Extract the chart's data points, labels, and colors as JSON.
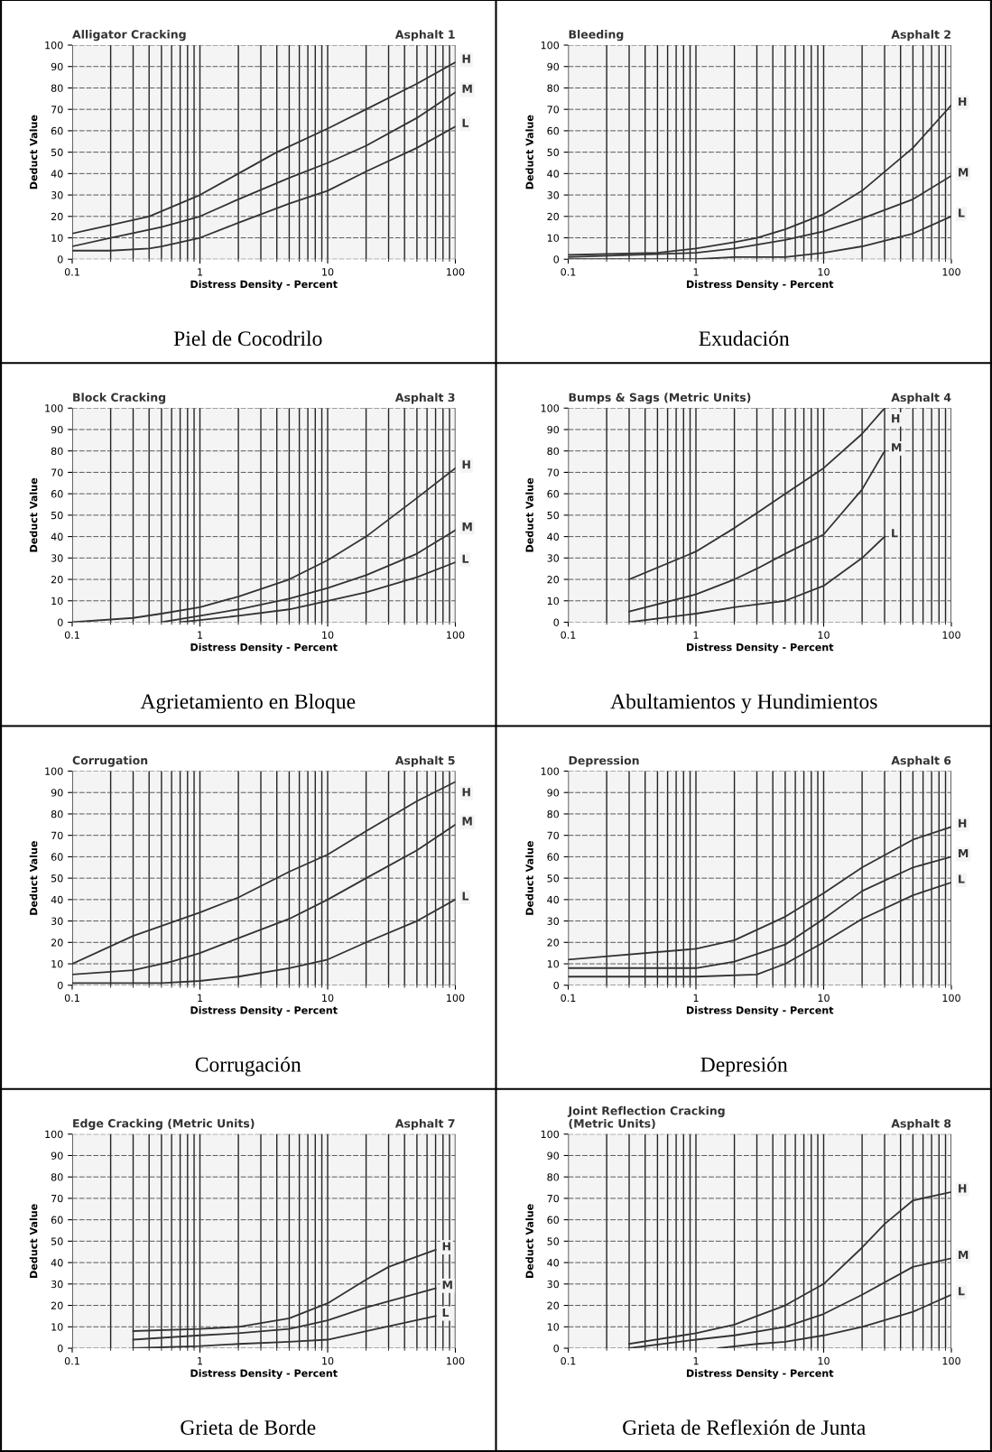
{
  "chart_data": [
    {
      "type": "line",
      "title": "Alligator Cracking",
      "xlabel": "Distress Density - Percent",
      "ylabel": "Deduct Value",
      "annotations": [
        "Asphalt 1",
        "Piel de Cocodrilo"
      ],
      "log": "x",
      "xlim": [
        0.1,
        100
      ],
      "xticks": [
        0.1,
        1,
        10,
        100
      ],
      "ylim": [
        0,
        100
      ],
      "yticks": [
        0,
        10,
        20,
        30,
        40,
        50,
        60,
        70,
        80,
        90,
        100
      ],
      "grid": true,
      "series": [
        {
          "name": "H",
          "color": "#333333",
          "x": [
            0.1,
            0.2,
            0.4,
            1,
            2,
            4,
            10,
            20,
            50,
            100
          ],
          "values": [
            12,
            16,
            20,
            30,
            40,
            50,
            61,
            70,
            82,
            92
          ]
        },
        {
          "name": "M",
          "color": "#333333",
          "x": [
            0.1,
            0.2,
            0.5,
            1,
            2,
            5,
            10,
            20,
            50,
            100
          ],
          "values": [
            6,
            10,
            15,
            20,
            28,
            38,
            45,
            53,
            66,
            78
          ]
        },
        {
          "name": "L",
          "color": "#333333",
          "x": [
            0.1,
            0.2,
            0.4,
            0.5,
            1,
            2,
            5,
            10,
            20,
            50,
            100
          ],
          "values": [
            4,
            4,
            5,
            6,
            10,
            17,
            26,
            32,
            41,
            52,
            62
          ]
        }
      ]
    },
    {
      "type": "line",
      "title": "Bleeding",
      "xlabel": "Distress Density - Percent",
      "ylabel": "Deduct Value",
      "annotations": [
        "Asphalt 2",
        "Exudación"
      ],
      "log": "x",
      "xlim": [
        0.1,
        100
      ],
      "xticks": [
        0.1,
        1,
        10,
        100
      ],
      "ylim": [
        0,
        100
      ],
      "yticks": [
        0,
        10,
        20,
        30,
        40,
        50,
        60,
        70,
        80,
        90,
        100
      ],
      "grid": true,
      "series": [
        {
          "name": "H",
          "color": "#333333",
          "x": [
            0.1,
            0.5,
            1,
            2,
            3,
            5,
            10,
            20,
            50,
            100
          ],
          "values": [
            2,
            3,
            5,
            8,
            10,
            14,
            21,
            32,
            52,
            72
          ]
        },
        {
          "name": "M",
          "color": "#333333",
          "x": [
            0.1,
            1,
            2,
            5,
            10,
            20,
            50,
            100
          ],
          "values": [
            1,
            3,
            5,
            9,
            13,
            19,
            28,
            39
          ]
        },
        {
          "name": "L",
          "color": "#333333",
          "x": [
            0.1,
            1,
            2,
            5,
            10,
            20,
            50,
            100
          ],
          "values": [
            0,
            0,
            1,
            1,
            3,
            6,
            12,
            20
          ]
        }
      ]
    },
    {
      "type": "line",
      "title": "Block Cracking",
      "xlabel": "Distress Density - Percent",
      "ylabel": "Deduct Value",
      "annotations": [
        "Asphalt 3",
        "Agrietamiento en Bloque"
      ],
      "log": "x",
      "xlim": [
        0.1,
        100
      ],
      "xticks": [
        0.1,
        1,
        10,
        100
      ],
      "ylim": [
        0,
        100
      ],
      "yticks": [
        0,
        10,
        20,
        30,
        40,
        50,
        60,
        70,
        80,
        90,
        100
      ],
      "grid": true,
      "series": [
        {
          "name": "H",
          "color": "#333333",
          "x": [
            0.1,
            0.3,
            0.5,
            1,
            2,
            5,
            10,
            20,
            50,
            100
          ],
          "values": [
            0,
            2,
            4,
            7,
            12,
            20,
            29,
            40,
            58,
            72
          ]
        },
        {
          "name": "M",
          "color": "#333333",
          "x": [
            0.5,
            1,
            2,
            5,
            10,
            20,
            50,
            100
          ],
          "values": [
            0,
            3,
            6,
            11,
            16,
            22,
            32,
            43
          ]
        },
        {
          "name": "L",
          "color": "#333333",
          "x": [
            0.7,
            1,
            2,
            5,
            10,
            20,
            50,
            100
          ],
          "values": [
            0,
            1,
            3,
            6,
            10,
            14,
            21,
            28
          ]
        }
      ]
    },
    {
      "type": "line",
      "title": "Bumps & Sags (Metric Units)",
      "xlabel": "Distress Density - Percent",
      "ylabel": "Deduct Value",
      "annotations": [
        "Asphalt 4",
        "Abultamientos y Hundimientos"
      ],
      "log": "x",
      "xlim": [
        0.1,
        100
      ],
      "xticks": [
        0.1,
        1,
        10,
        100
      ],
      "ylim": [
        0,
        100
      ],
      "yticks": [
        0,
        10,
        20,
        30,
        40,
        50,
        60,
        70,
        80,
        90,
        100
      ],
      "grid": true,
      "series": [
        {
          "name": "H",
          "color": "#333333",
          "x": [
            0.3,
            1,
            2,
            3,
            5,
            10,
            20,
            30
          ],
          "values": [
            20,
            33,
            44,
            51,
            60,
            72,
            88,
            100
          ]
        },
        {
          "name": "M",
          "color": "#333333",
          "x": [
            0.3,
            1,
            2,
            3,
            5,
            10,
            20,
            30
          ],
          "values": [
            5,
            13,
            20,
            25,
            32,
            41,
            62,
            80
          ]
        },
        {
          "name": "L",
          "color": "#333333",
          "x": [
            0.3,
            1,
            2,
            5,
            10,
            20,
            30
          ],
          "values": [
            0,
            4,
            7,
            10,
            17,
            30,
            40
          ]
        }
      ]
    },
    {
      "type": "line",
      "title": "Corrugation",
      "xlabel": "Distress Density - Percent",
      "ylabel": "Deduct Value",
      "annotations": [
        "Asphalt 5",
        "Corrugación"
      ],
      "log": "x",
      "xlim": [
        0.1,
        100
      ],
      "xticks": [
        0.1,
        1,
        10,
        100
      ],
      "ylim": [
        0,
        100
      ],
      "yticks": [
        0,
        10,
        20,
        30,
        40,
        50,
        60,
        70,
        80,
        90,
        100
      ],
      "grid": true,
      "series": [
        {
          "name": "H",
          "color": "#333333",
          "x": [
            0.1,
            0.3,
            1,
            2,
            5,
            10,
            20,
            50,
            100
          ],
          "values": [
            10,
            23,
            34,
            41,
            53,
            61,
            72,
            86,
            95
          ]
        },
        {
          "name": "M",
          "color": "#333333",
          "x": [
            0.1,
            0.3,
            0.6,
            1,
            2,
            5,
            10,
            20,
            50,
            100
          ],
          "values": [
            5,
            7,
            11,
            15,
            22,
            31,
            40,
            50,
            63,
            75
          ]
        },
        {
          "name": "L",
          "color": "#333333",
          "x": [
            0.1,
            0.5,
            1,
            2,
            5,
            10,
            20,
            50,
            100
          ],
          "values": [
            1,
            1,
            2,
            4,
            8,
            12,
            20,
            30,
            40
          ]
        }
      ]
    },
    {
      "type": "line",
      "title": "Depression",
      "xlabel": "Distress Density - Percent",
      "ylabel": "Deduct Value",
      "annotations": [
        "Asphalt 6",
        "Depresión"
      ],
      "log": "x",
      "xlim": [
        0.1,
        100
      ],
      "xticks": [
        0.1,
        1,
        10,
        100
      ],
      "ylim": [
        0,
        100
      ],
      "yticks": [
        0,
        10,
        20,
        30,
        40,
        50,
        60,
        70,
        80,
        90,
        100
      ],
      "grid": true,
      "series": [
        {
          "name": "H",
          "color": "#333333",
          "x": [
            0.1,
            1,
            2,
            5,
            10,
            20,
            50,
            100
          ],
          "values": [
            12,
            17,
            21,
            32,
            43,
            55,
            68,
            74
          ]
        },
        {
          "name": "M",
          "color": "#333333",
          "x": [
            0.1,
            1,
            2,
            5,
            10,
            20,
            50,
            100
          ],
          "values": [
            8,
            8,
            11,
            19,
            31,
            44,
            55,
            60
          ]
        },
        {
          "name": "L",
          "color": "#333333",
          "x": [
            0.1,
            1,
            3,
            5,
            10,
            20,
            50,
            100
          ],
          "values": [
            4,
            4,
            5,
            10,
            20,
            31,
            42,
            48
          ]
        }
      ]
    },
    {
      "type": "line",
      "title": "Edge Cracking (Metric Units)",
      "xlabel": "Distress Density - Percent",
      "ylabel": "Deduct Value",
      "annotations": [
        "Asphalt 7",
        "Grieta de Borde"
      ],
      "log": "x",
      "xlim": [
        0.1,
        100
      ],
      "xticks": [
        0.1,
        1,
        10,
        100
      ],
      "ylim": [
        0,
        100
      ],
      "yticks": [
        0,
        10,
        20,
        30,
        40,
        50,
        60,
        70,
        80,
        90,
        100
      ],
      "grid": true,
      "series": [
        {
          "name": "H",
          "color": "#333333",
          "x": [
            0.3,
            1,
            2,
            5,
            10,
            20,
            30,
            70
          ],
          "values": [
            8,
            9,
            10,
            14,
            21,
            32,
            38,
            46
          ]
        },
        {
          "name": "M",
          "color": "#333333",
          "x": [
            0.3,
            1,
            2,
            5,
            10,
            20,
            70
          ],
          "values": [
            4,
            6,
            7,
            9,
            13,
            19,
            28
          ]
        },
        {
          "name": "L",
          "color": "#333333",
          "x": [
            0.3,
            1,
            2,
            5,
            10,
            20,
            70
          ],
          "values": [
            0,
            1,
            2,
            3,
            4,
            8,
            15
          ]
        }
      ]
    },
    {
      "type": "line",
      "title": "Joint Reflection Cracking\n(Metric Units)",
      "xlabel": "Distress Density - Percent",
      "ylabel": "Deduct Value",
      "annotations": [
        "Asphalt 8",
        "Grieta de Reflexión de Junta"
      ],
      "log": "x",
      "xlim": [
        0.1,
        100
      ],
      "xticks": [
        0.1,
        1,
        10,
        100
      ],
      "ylim": [
        0,
        100
      ],
      "yticks": [
        0,
        10,
        20,
        30,
        40,
        50,
        60,
        70,
        80,
        90,
        100
      ],
      "grid": true,
      "series": [
        {
          "name": "H",
          "color": "#333333",
          "x": [
            0.3,
            1,
            2,
            3,
            5,
            10,
            20,
            30,
            50,
            100
          ],
          "values": [
            2,
            7,
            11,
            15,
            20,
            30,
            47,
            58,
            69,
            73
          ]
        },
        {
          "name": "M",
          "color": "#333333",
          "x": [
            0.3,
            1,
            2,
            5,
            10,
            20,
            50,
            100
          ],
          "values": [
            0,
            4,
            6,
            10,
            16,
            25,
            38,
            42
          ]
        },
        {
          "name": "L",
          "color": "#333333",
          "x": [
            1.5,
            3,
            5,
            10,
            20,
            50,
            100
          ],
          "values": [
            0,
            2,
            3,
            6,
            10,
            17,
            25
          ]
        }
      ]
    }
  ]
}
